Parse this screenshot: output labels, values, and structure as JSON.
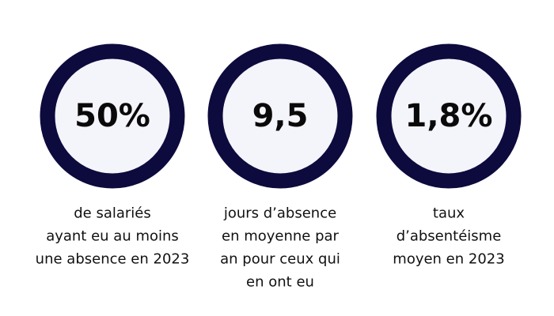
{
  "stats": [
    {
      "value": "50%",
      "lines": [
        "de salariés",
        "ayant eu au moins",
        "une absence en 2023"
      ]
    },
    {
      "value": "9,5",
      "lines": [
        "jours d’absence",
        "en moyenne par",
        "an pour ceux qui",
        "en ont eu"
      ]
    },
    {
      "value": "1,8%",
      "lines": [
        "taux",
        "d’absentéisme",
        "moyen en 2023"
      ]
    }
  ]
}
